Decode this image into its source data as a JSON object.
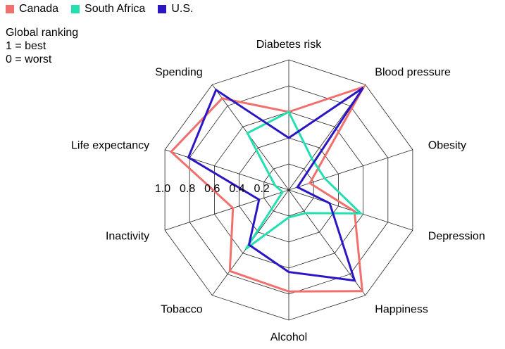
{
  "note": {
    "line1": "Global ranking",
    "line2": "1 = best",
    "line3": "0 = worst"
  },
  "chart_data": {
    "type": "radar",
    "title": "",
    "axes": [
      "Diabetes risk",
      "Blood pressure",
      "Obesity",
      "Depression",
      "Happiness",
      "Alcohol",
      "Tobacco",
      "Inactivity",
      "Life expectancy",
      "Spending"
    ],
    "scale": {
      "min": 0,
      "max": 1.0,
      "ticks": [
        0.2,
        0.4,
        0.6,
        0.8,
        1.0
      ],
      "tick_labels": [
        "0.2",
        "0.4",
        "0.6",
        "0.8",
        "1.0"
      ]
    },
    "grid": true,
    "legend_position": "top-left",
    "series": [
      {
        "name": "Canada",
        "color": "#f0706e",
        "values": [
          0.6,
          0.98,
          0.17,
          0.53,
          0.96,
          0.78,
          0.77,
          0.45,
          0.95,
          0.87
        ]
      },
      {
        "name": "South Africa",
        "color": "#24e0b0",
        "values": [
          0.6,
          0.3,
          0.29,
          0.58,
          0.22,
          0.21,
          0.56,
          0.05,
          0.11,
          0.54
        ]
      },
      {
        "name": "U.S.",
        "color": "#2b16c4",
        "values": [
          0.4,
          0.97,
          0.07,
          0.33,
          0.86,
          0.63,
          0.52,
          0.24,
          0.81,
          0.95
        ]
      }
    ]
  }
}
